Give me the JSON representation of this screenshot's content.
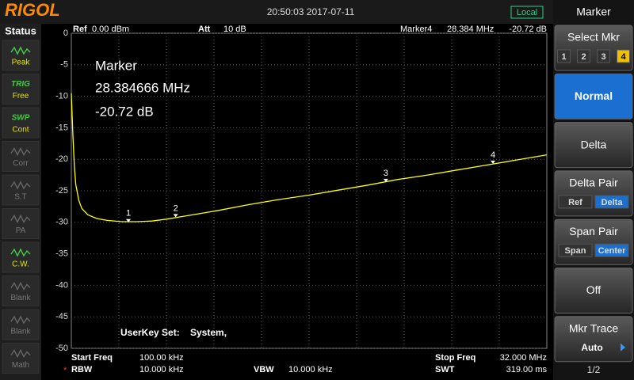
{
  "header": {
    "brand": "RIGOL",
    "datetime": "20:50:03 2017-07-11",
    "mode": "Local"
  },
  "status": {
    "title": "Status",
    "items": [
      {
        "label": "Peak",
        "active": true
      },
      {
        "tag": "TRIG",
        "label": "Free",
        "active": true
      },
      {
        "tag": "SWP",
        "label": "Cont",
        "active": true
      },
      {
        "label": "Corr",
        "active": false
      },
      {
        "label": "S.T",
        "active": false
      },
      {
        "label": "PA",
        "active": false
      },
      {
        "label": "C.W.",
        "active": true
      },
      {
        "label": "Blank",
        "active": false
      },
      {
        "label": "Blank",
        "active": false
      },
      {
        "label": "Math",
        "active": false
      }
    ]
  },
  "top_bar": {
    "ref_label": "Ref",
    "ref": "0.00 dBm",
    "att_label": "Att",
    "att": "10 dB",
    "marker_label": "Marker4",
    "marker_freq": "28.384 MHz",
    "marker_level": "-20.72 dB"
  },
  "marker_readout": {
    "title": "Marker",
    "freq": "28.384666 MHz",
    "level": "-20.72 dB"
  },
  "userkey": {
    "label": "UserKey Set:",
    "value": "System,"
  },
  "bottom": {
    "start_label": "Start Freq",
    "start": "100.00 kHz",
    "stop_label": "Stop Freq",
    "stop": "32.000 MHz",
    "rbw_flag": "*",
    "rbw_label": "RBW",
    "rbw": "10.000 kHz",
    "vbw_label": "VBW",
    "vbw": "10.000 kHz",
    "swt_label": "SWT",
    "swt": "319.00 ms"
  },
  "menu": {
    "title": "Marker",
    "buttons": [
      {
        "label": "Select Mkr",
        "options": [
          "1",
          "2",
          "3",
          "4"
        ],
        "active": 3
      },
      {
        "label": "Normal",
        "selected": true
      },
      {
        "label": "Delta"
      },
      {
        "label": "Delta Pair",
        "options": [
          "Ref",
          "Delta"
        ],
        "active": 1
      },
      {
        "label": "Span Pair",
        "options": [
          "Span",
          "Center"
        ],
        "active": 1
      },
      {
        "label": "Off"
      },
      {
        "label": "Mkr Trace",
        "sub": "Auto"
      }
    ],
    "page": "1/2"
  },
  "chart_data": {
    "type": "line",
    "xlim": [
      0.1,
      32
    ],
    "ylim": [
      -50,
      0
    ],
    "yticks": [
      0,
      -5,
      -10,
      -15,
      -20,
      -25,
      -30,
      -35,
      -40,
      -45,
      -50
    ],
    "grid": true,
    "series": [
      {
        "color": "#ffff00",
        "x": [
          0.1,
          0.2,
          0.3,
          0.4,
          0.6,
          0.8,
          1.2,
          1.8,
          2.5,
          3.5,
          4.5,
          5.5,
          6.5,
          7.5,
          8.5,
          10,
          12,
          14,
          16,
          18,
          20,
          22,
          24,
          26,
          28,
          30,
          32
        ],
        "values": [
          -9.5,
          -16,
          -21,
          -24,
          -26.5,
          -27.8,
          -28.8,
          -29.4,
          -29.7,
          -29.9,
          -29.9,
          -29.8,
          -29.5,
          -29.1,
          -28.7,
          -28.1,
          -27.2,
          -26.4,
          -25.7,
          -24.9,
          -24.1,
          -23.2,
          -22.5,
          -21.7,
          -20.9,
          -20.1,
          -19.3
        ]
      }
    ],
    "markers": {
      "labels": [
        "1",
        "2",
        "3",
        "4"
      ],
      "x": [
        3.93,
        7.1,
        21.2,
        28.384666
      ],
      "values": [
        -30,
        -29.2,
        -23.6,
        -20.72
      ]
    }
  }
}
